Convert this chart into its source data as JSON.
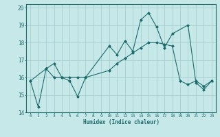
{
  "title": "",
  "xlabel": "Humidex (Indice chaleur)",
  "ylabel": "",
  "bg_color": "#c6e8e8",
  "grid_color": "#a8d0d0",
  "line_color": "#1a6b6b",
  "xlim": [
    -0.5,
    23.5
  ],
  "ylim": [
    14,
    20.2
  ],
  "yticks": [
    14,
    15,
    16,
    17,
    18,
    19,
    20
  ],
  "xticks": [
    0,
    1,
    2,
    3,
    4,
    5,
    6,
    7,
    8,
    9,
    10,
    11,
    12,
    13,
    14,
    15,
    16,
    17,
    18,
    19,
    20,
    21,
    22,
    23
  ],
  "line1_x": [
    0,
    1,
    2,
    3,
    4,
    5,
    6,
    7,
    10,
    11,
    12,
    13,
    14,
    15,
    16,
    17,
    18,
    20,
    21,
    22,
    23
  ],
  "line1_y": [
    15.8,
    14.3,
    16.5,
    16.0,
    16.0,
    15.8,
    14.9,
    16.0,
    17.8,
    17.3,
    18.1,
    17.5,
    19.3,
    19.7,
    18.9,
    17.7,
    18.5,
    19.0,
    15.7,
    15.3,
    15.8
  ],
  "line2_x": [
    0,
    2,
    3,
    4,
    5,
    6,
    7,
    10,
    11,
    12,
    13,
    14,
    15,
    16,
    17,
    18,
    19,
    20,
    21,
    22,
    23
  ],
  "line2_y": [
    15.8,
    16.5,
    16.8,
    16.0,
    16.0,
    16.0,
    16.0,
    16.4,
    16.8,
    17.1,
    17.4,
    17.7,
    18.0,
    18.0,
    17.9,
    17.8,
    15.8,
    15.6,
    15.8,
    15.5,
    15.8
  ]
}
